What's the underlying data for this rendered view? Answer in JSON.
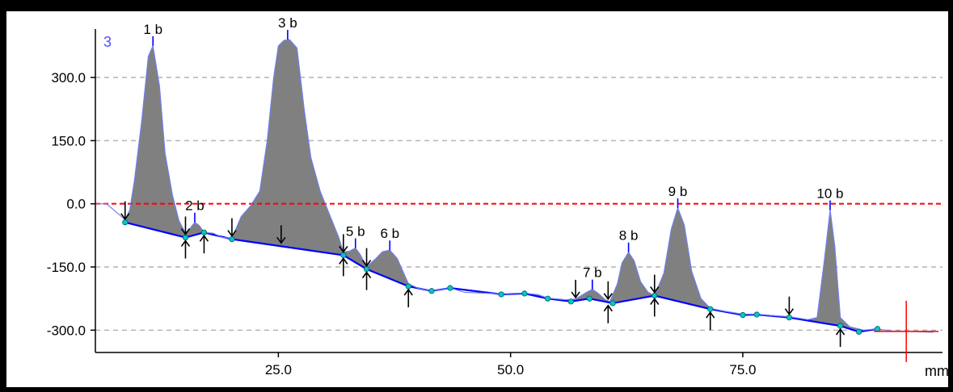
{
  "chart_data": {
    "type": "area",
    "lane_label": "3",
    "xlabel": "mm",
    "ylabel": "",
    "xlim": [
      5.3,
      96.5
    ],
    "ylim": [
      -353,
      415
    ],
    "x_ticks": [
      {
        "value": 25.0,
        "label": "25.0"
      },
      {
        "value": 50.0,
        "label": "50.0"
      },
      {
        "value": 75.0,
        "label": "75.0"
      }
    ],
    "y_ticks": [
      {
        "value": 300,
        "label": "300.0"
      },
      {
        "value": 150,
        "label": "150.0"
      },
      {
        "value": 0,
        "label": "0.0"
      },
      {
        "value": -150,
        "label": "-150.0"
      },
      {
        "value": -300,
        "label": "-300.0"
      }
    ],
    "grid": "horizontal dashed",
    "zero_line_color": "#ff0000",
    "trace_color": "#0000ff",
    "fill_color": "#808080",
    "marker_color": "#00c8c8",
    "cursor_color": "#ff0000",
    "cursor": {
      "x": 92.6,
      "y": -303
    },
    "baseline_points": [
      [
        8.5,
        -44
      ],
      [
        15,
        -80
      ],
      [
        17,
        -68
      ],
      [
        20,
        -84
      ],
      [
        32,
        -122
      ],
      [
        34.5,
        -155
      ],
      [
        39,
        -196
      ],
      [
        41.5,
        -207
      ],
      [
        43.5,
        -200
      ],
      [
        49,
        -215
      ],
      [
        51.5,
        -213
      ],
      [
        54,
        -225
      ],
      [
        56.5,
        -232
      ],
      [
        58.5,
        -225
      ],
      [
        61,
        -236
      ],
      [
        65.5,
        -218
      ],
      [
        71.5,
        -250
      ],
      [
        75,
        -264
      ],
      [
        76.5,
        -263
      ],
      [
        80,
        -270
      ],
      [
        85.5,
        -290
      ],
      [
        87.5,
        -304
      ],
      [
        89.5,
        -297
      ]
    ],
    "signal_points": [
      [
        5.3,
        0
      ],
      [
        6.5,
        0
      ],
      [
        8,
        -28
      ],
      [
        8.5,
        -38
      ],
      [
        9,
        -15
      ],
      [
        9.5,
        55
      ],
      [
        10.3,
        200
      ],
      [
        11,
        350
      ],
      [
        11.5,
        375
      ],
      [
        12.2,
        280
      ],
      [
        12.8,
        120
      ],
      [
        13.6,
        20
      ],
      [
        14.3,
        -40
      ],
      [
        15,
        -70
      ],
      [
        15.5,
        -58
      ],
      [
        16,
        -44
      ],
      [
        16.5,
        -52
      ],
      [
        17,
        -68
      ],
      [
        18,
        -70
      ],
      [
        19,
        -80
      ],
      [
        20,
        -82
      ],
      [
        21,
        -30
      ],
      [
        22,
        -5
      ],
      [
        23,
        30
      ],
      [
        23.8,
        150
      ],
      [
        24.5,
        300
      ],
      [
        25,
        375
      ],
      [
        25.6,
        388
      ],
      [
        26.2,
        390
      ],
      [
        27,
        370
      ],
      [
        27.8,
        220
      ],
      [
        28.5,
        110
      ],
      [
        29.5,
        30
      ],
      [
        30.5,
        -25
      ],
      [
        31.5,
        -80
      ],
      [
        32,
        -115
      ],
      [
        32.7,
        -112
      ],
      [
        33.3,
        -105
      ],
      [
        33.8,
        -120
      ],
      [
        34.5,
        -150
      ],
      [
        35.5,
        -130
      ],
      [
        36.2,
        -114
      ],
      [
        37,
        -110
      ],
      [
        37.8,
        -130
      ],
      [
        38.5,
        -165
      ],
      [
        39,
        -190
      ],
      [
        40,
        -200
      ],
      [
        41.5,
        -207
      ],
      [
        43.5,
        -200
      ],
      [
        45,
        -210
      ],
      [
        47,
        -212
      ],
      [
        49,
        -214
      ],
      [
        51.5,
        -212
      ],
      [
        53,
        -216
      ],
      [
        54,
        -224
      ],
      [
        56,
        -228
      ],
      [
        57,
        -226
      ],
      [
        58.2,
        -210
      ],
      [
        58.8,
        -203
      ],
      [
        59.4,
        -212
      ],
      [
        60.2,
        -228
      ],
      [
        60.7,
        -232
      ],
      [
        61.5,
        -190
      ],
      [
        62,
        -140
      ],
      [
        62.7,
        -115
      ],
      [
        63.3,
        -135
      ],
      [
        64,
        -185
      ],
      [
        64.8,
        -210
      ],
      [
        65.5,
        -218
      ],
      [
        66.5,
        -165
      ],
      [
        67.3,
        -60
      ],
      [
        68,
        -10
      ],
      [
        68.7,
        -50
      ],
      [
        69.5,
        -160
      ],
      [
        70.5,
        -225
      ],
      [
        71.5,
        -248
      ],
      [
        73,
        -255
      ],
      [
        75,
        -262
      ],
      [
        76.5,
        -262
      ],
      [
        78,
        -265
      ],
      [
        80,
        -268
      ],
      [
        82,
        -275
      ],
      [
        83,
        -270
      ],
      [
        83.8,
        -130
      ],
      [
        84.4,
        -15
      ],
      [
        84.9,
        -100
      ],
      [
        85.5,
        -270
      ],
      [
        86.5,
        -292
      ],
      [
        88,
        -300
      ],
      [
        89.5,
        -297
      ],
      [
        91,
        -302
      ],
      [
        93,
        -303
      ],
      [
        95.5,
        -305
      ]
    ],
    "bands": [
      {
        "label": "1 b",
        "x": 11.5,
        "y": 375
      },
      {
        "label": "2 b",
        "x": 16.0,
        "y": -44
      },
      {
        "label": "3 b",
        "x": 26.0,
        "y": 390
      },
      {
        "label": "5 b",
        "x": 33.3,
        "y": -105
      },
      {
        "label": "6 b",
        "x": 37.0,
        "y": -110
      },
      {
        "label": "7 b",
        "x": 58.8,
        "y": -203
      },
      {
        "label": "8 b",
        "x": 62.7,
        "y": -115
      },
      {
        "label": "9 b",
        "x": 68.0,
        "y": -10
      },
      {
        "label": "10 b",
        "x": 84.4,
        "y": -15
      }
    ],
    "edge_markers": [
      {
        "x": 8.5,
        "dir": "down"
      },
      {
        "x": 15.0,
        "dir": "down"
      },
      {
        "x": 15.0,
        "dir": "up"
      },
      {
        "x": 17.0,
        "dir": "up"
      },
      {
        "x": 20.0,
        "dir": "down"
      },
      {
        "x": 25.3,
        "dir": "down"
      },
      {
        "x": 32.0,
        "dir": "down"
      },
      {
        "x": 32.0,
        "dir": "up"
      },
      {
        "x": 34.5,
        "dir": "down"
      },
      {
        "x": 34.5,
        "dir": "up"
      },
      {
        "x": 39.0,
        "dir": "up"
      },
      {
        "x": 57.0,
        "dir": "down"
      },
      {
        "x": 60.5,
        "dir": "down"
      },
      {
        "x": 60.5,
        "dir": "up"
      },
      {
        "x": 65.5,
        "dir": "down"
      },
      {
        "x": 65.5,
        "dir": "up"
      },
      {
        "x": 71.5,
        "dir": "up"
      },
      {
        "x": 80.0,
        "dir": "down"
      },
      {
        "x": 85.5,
        "dir": "up"
      }
    ]
  }
}
